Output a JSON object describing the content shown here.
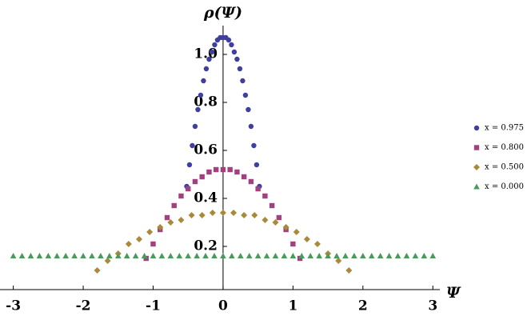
{
  "chart_data": {
    "type": "scatter",
    "x_label": "Ψ",
    "y_label": "ρ(Ψ)",
    "xlim": [
      -3.19,
      3.1
    ],
    "ylim": [
      0.02,
      1.12
    ],
    "xticks": [
      -3,
      -2,
      -1,
      0,
      1,
      2,
      3
    ],
    "yticks": [
      0.2,
      0.4,
      0.6,
      0.8,
      {
        "value": 1.0,
        "label": "1.0"
      }
    ],
    "series": [
      {
        "name": "x = 0.975",
        "color": "#3f3f9f",
        "marker": "circle",
        "x": [
          -0.52,
          -0.48,
          -0.44,
          -0.4,
          -0.36,
          -0.32,
          -0.28,
          -0.24,
          -0.2,
          -0.16,
          -0.12,
          -0.08,
          -0.04,
          0,
          0.04,
          0.08,
          0.12,
          0.16,
          0.2,
          0.24,
          0.28,
          0.32,
          0.36,
          0.4,
          0.44,
          0.48,
          0.52
        ],
        "values": [
          0.45,
          0.54,
          0.62,
          0.7,
          0.77,
          0.83,
          0.89,
          0.94,
          0.98,
          1.01,
          1.04,
          1.06,
          1.07,
          1.07,
          1.07,
          1.06,
          1.04,
          1.01,
          0.98,
          0.94,
          0.89,
          0.83,
          0.77,
          0.7,
          0.62,
          0.54,
          0.45
        ]
      },
      {
        "name": "x = 0.800",
        "color": "#a3407f",
        "marker": "square",
        "x": [
          -1.1,
          -1,
          -0.9,
          -0.8,
          -0.7,
          -0.6,
          -0.5,
          -0.4,
          -0.3,
          -0.2,
          -0.1,
          0,
          0.1,
          0.2,
          0.3,
          0.4,
          0.5,
          0.6,
          0.7,
          0.8,
          0.9,
          1,
          1.1
        ],
        "values": [
          0.15,
          0.21,
          0.27,
          0.32,
          0.37,
          0.41,
          0.44,
          0.47,
          0.49,
          0.51,
          0.52,
          0.52,
          0.52,
          0.51,
          0.49,
          0.47,
          0.44,
          0.41,
          0.37,
          0.32,
          0.27,
          0.21,
          0.15
        ]
      },
      {
        "name": "x = 0.500",
        "color": "#a88a3a",
        "marker": "diamond",
        "x": [
          -1.8,
          -1.65,
          -1.5,
          -1.35,
          -1.2,
          -1.05,
          -0.9,
          -0.75,
          -0.6,
          -0.45,
          -0.3,
          -0.15,
          0,
          0.15,
          0.3,
          0.45,
          0.6,
          0.75,
          0.9,
          1.05,
          1.2,
          1.35,
          1.5,
          1.65,
          1.8
        ],
        "values": [
          0.1,
          0.14,
          0.17,
          0.21,
          0.23,
          0.26,
          0.28,
          0.3,
          0.31,
          0.33,
          0.33,
          0.34,
          0.34,
          0.34,
          0.33,
          0.33,
          0.31,
          0.3,
          0.28,
          0.26,
          0.23,
          0.21,
          0.17,
          0.14,
          0.1
        ]
      },
      {
        "name": "x = 0.000",
        "color": "#4a9a5e",
        "marker": "triangle",
        "x": [
          -3,
          -2.875,
          -2.75,
          -2.625,
          -2.5,
          -2.375,
          -2.25,
          -2.125,
          -2,
          -1.875,
          -1.75,
          -1.625,
          -1.5,
          -1.375,
          -1.25,
          -1.125,
          -1,
          -0.875,
          -0.75,
          -0.625,
          -0.5,
          -0.375,
          -0.25,
          -0.125,
          0,
          0.125,
          0.25,
          0.375,
          0.5,
          0.625,
          0.75,
          0.875,
          1,
          1.125,
          1.25,
          1.375,
          1.5,
          1.625,
          1.75,
          1.875,
          2,
          2.125,
          2.25,
          2.375,
          2.5,
          2.625,
          2.75,
          2.875,
          3
        ],
        "values": [
          0.16,
          0.16,
          0.16,
          0.16,
          0.16,
          0.16,
          0.16,
          0.16,
          0.16,
          0.16,
          0.16,
          0.16,
          0.16,
          0.16,
          0.16,
          0.16,
          0.16,
          0.16,
          0.16,
          0.16,
          0.16,
          0.16,
          0.16,
          0.16,
          0.16,
          0.16,
          0.16,
          0.16,
          0.16,
          0.16,
          0.16,
          0.16,
          0.16,
          0.16,
          0.16,
          0.16,
          0.16,
          0.16,
          0.16,
          0.16,
          0.16,
          0.16,
          0.16,
          0.16,
          0.16,
          0.16,
          0.16,
          0.16,
          0.16
        ]
      }
    ]
  }
}
